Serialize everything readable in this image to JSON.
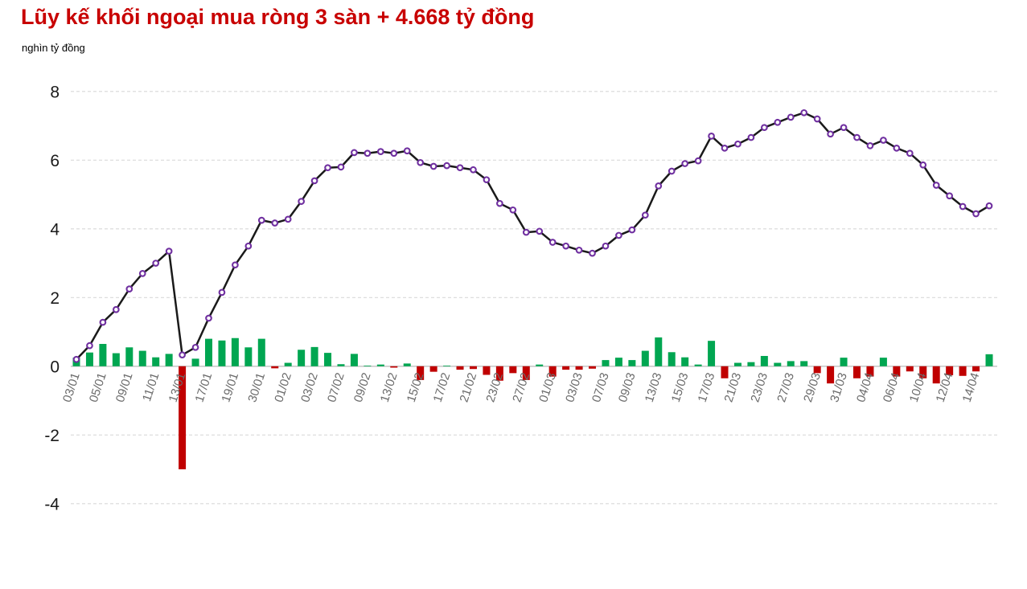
{
  "header": {
    "title": "Lũy kế khối ngoại mua ròng 3 sàn + 4.668 tỷ đồng",
    "unit_label": "nghìn tỷ đồng"
  },
  "chart_data": {
    "type": "combo",
    "title": "Lũy kế khối ngoại mua ròng 3 sàn + 4.668 tỷ đồng",
    "ylabel": "nghìn tỷ đồng",
    "ylim": [
      -4,
      8
    ],
    "yticks": [
      8,
      6,
      4,
      2,
      0,
      -2,
      -4
    ],
    "grid": "horizontal-dashed",
    "legend_position": "none",
    "n_points": 70,
    "x_tick_labels": [
      "03/01",
      "05/01",
      "09/01",
      "11/01",
      "13/01",
      "17/01",
      "19/01",
      "30/01",
      "01/02",
      "03/02",
      "07/02",
      "09/02",
      "13/02",
      "15/02",
      "17/02",
      "21/02",
      "23/02",
      "27/02",
      "01/03",
      "03/03",
      "07/03",
      "09/03",
      "13/03",
      "15/03",
      "17/03",
      "21/03",
      "23/03",
      "27/03",
      "29/03",
      "31/03",
      "04/04",
      "06/04",
      "10/04",
      "12/04",
      "14/04"
    ],
    "label_every": 2,
    "series": [
      {
        "name": "cumulative-line",
        "type": "line",
        "values": [
          0.2,
          0.6,
          1.28,
          1.65,
          2.25,
          2.7,
          3.0,
          3.35,
          0.33,
          0.55,
          1.4,
          2.15,
          2.95,
          3.5,
          4.25,
          4.17,
          4.28,
          4.8,
          5.4,
          5.78,
          5.8,
          6.22,
          6.2,
          6.25,
          6.2,
          6.27,
          5.93,
          5.82,
          5.84,
          5.78,
          5.72,
          5.43,
          4.74,
          4.55,
          3.9,
          3.93,
          3.61,
          3.5,
          3.38,
          3.29,
          3.5,
          3.81,
          3.97,
          4.4,
          5.25,
          5.68,
          5.9,
          5.98,
          6.7,
          6.35,
          6.47,
          6.66,
          6.95,
          7.1,
          7.25,
          7.38,
          7.2,
          6.76,
          6.95,
          6.66,
          6.42,
          6.58,
          6.35,
          6.2,
          5.86,
          5.27,
          4.96,
          4.65,
          4.44,
          4.67
        ]
      },
      {
        "name": "daily-bars",
        "type": "bar",
        "values": [
          0.25,
          0.4,
          0.65,
          0.38,
          0.55,
          0.45,
          0.26,
          0.36,
          -3.0,
          0.22,
          0.8,
          0.75,
          0.82,
          0.55,
          0.8,
          -0.06,
          0.1,
          0.48,
          0.56,
          0.39,
          0.06,
          0.36,
          0.02,
          0.05,
          -0.04,
          0.08,
          -0.4,
          -0.16,
          0.02,
          -0.1,
          -0.08,
          -0.25,
          -0.42,
          -0.2,
          -0.4,
          0.05,
          -0.3,
          -0.1,
          -0.1,
          -0.07,
          0.18,
          0.25,
          0.18,
          0.45,
          0.84,
          0.41,
          0.26,
          0.05,
          0.74,
          -0.35,
          0.1,
          0.12,
          0.3,
          0.1,
          0.15,
          0.15,
          -0.2,
          -0.5,
          0.25,
          -0.35,
          -0.3,
          0.25,
          -0.3,
          -0.15,
          -0.35,
          -0.5,
          -0.26,
          -0.28,
          -0.15,
          0.35
        ]
      }
    ],
    "colors": {
      "title": "#C80000",
      "line": "#1a1a1a",
      "marker_fill": "#FFFFFF",
      "marker_stroke": "#7030A0",
      "bar_positive": "#00A651",
      "bar_negative": "#C00000",
      "gridline": "#D9D9D9",
      "zero_axis": "#C9C9C9",
      "y_label": "#1A1A1A",
      "x_label": "#6B6B6B"
    }
  }
}
